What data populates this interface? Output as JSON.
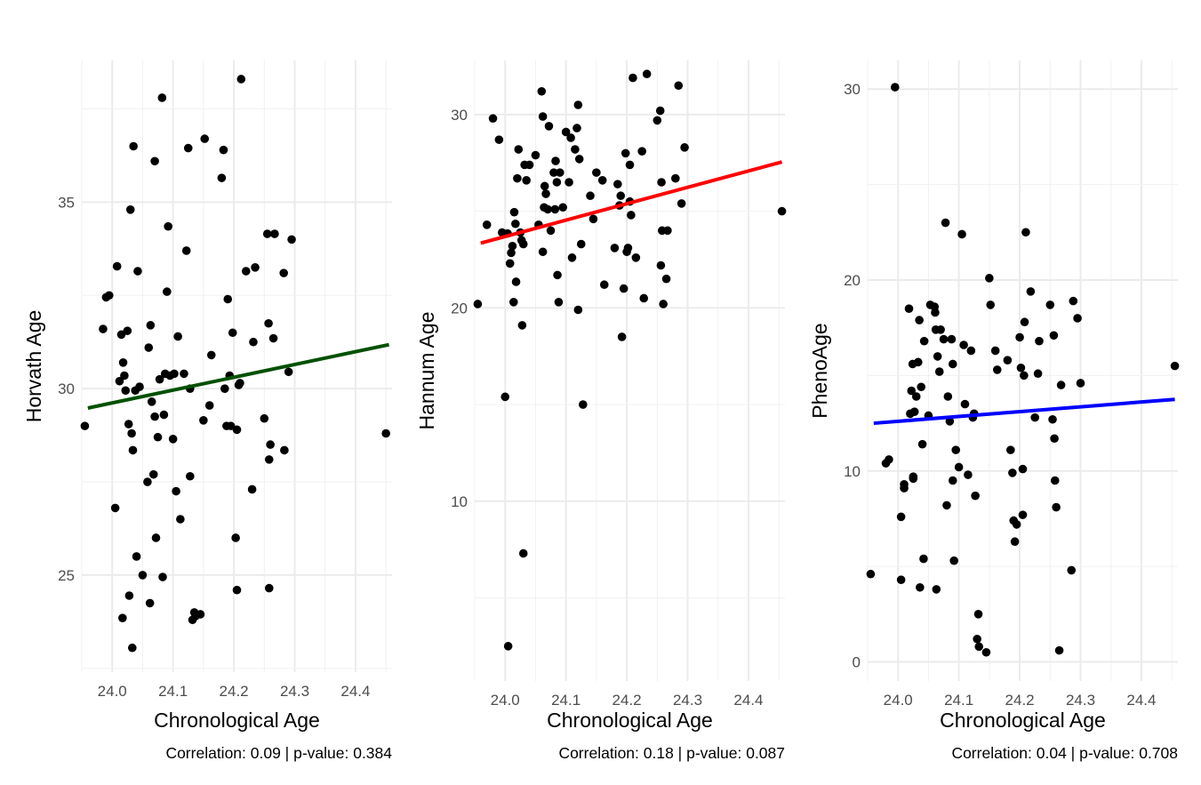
{
  "chart_data": [
    {
      "type": "scatter",
      "xlabel": "Chronological Age",
      "ylabel": "Horvath Age",
      "caption": "Correlation: 0.09 | p-value: 0.384",
      "xlim": [
        23.95,
        24.46
      ],
      "ylim": [
        22.4,
        38.8
      ],
      "x_ticks": [
        "24.0",
        "24.1",
        "24.2",
        "24.3",
        "24.4"
      ],
      "y_ticks": [
        "25",
        "30",
        "35"
      ],
      "y_tick_values": [
        25,
        30,
        35
      ],
      "trend_line": {
        "x": [
          23.96,
          24.455
        ],
        "y": [
          29.48,
          31.18
        ],
        "color": "#005000"
      },
      "points": [
        [
          23.955,
          29.0
        ],
        [
          23.985,
          31.6
        ],
        [
          23.99,
          32.45
        ],
        [
          23.995,
          32.5
        ],
        [
          24.005,
          26.8
        ],
        [
          24.008,
          33.28
        ],
        [
          24.012,
          30.2
        ],
        [
          24.015,
          31.45
        ],
        [
          24.017,
          23.85
        ],
        [
          24.018,
          30.7
        ],
        [
          24.02,
          30.35
        ],
        [
          24.022,
          29.95
        ],
        [
          24.025,
          31.55
        ],
        [
          24.027,
          29.05
        ],
        [
          24.028,
          24.45
        ],
        [
          24.03,
          34.8
        ],
        [
          24.032,
          28.8
        ],
        [
          24.033,
          23.05
        ],
        [
          24.034,
          28.35
        ],
        [
          24.035,
          36.5
        ],
        [
          24.038,
          29.95
        ],
        [
          24.04,
          25.5
        ],
        [
          24.042,
          33.15
        ],
        [
          24.045,
          30.05
        ],
        [
          24.05,
          25.0
        ],
        [
          24.058,
          27.5
        ],
        [
          24.06,
          31.1
        ],
        [
          24.062,
          24.25
        ],
        [
          24.063,
          31.7
        ],
        [
          24.065,
          29.65
        ],
        [
          24.068,
          27.7
        ],
        [
          24.07,
          29.25
        ],
        [
          24.07,
          36.1
        ],
        [
          24.072,
          26.0
        ],
        [
          24.075,
          28.7
        ],
        [
          24.078,
          30.25
        ],
        [
          24.082,
          37.8
        ],
        [
          24.083,
          24.95
        ],
        [
          24.085,
          29.3
        ],
        [
          24.087,
          30.4
        ],
        [
          24.09,
          32.6
        ],
        [
          24.092,
          34.35
        ],
        [
          24.095,
          30.35
        ],
        [
          24.1,
          28.65
        ],
        [
          24.102,
          30.4
        ],
        [
          24.105,
          27.25
        ],
        [
          24.108,
          31.4
        ],
        [
          24.112,
          26.5
        ],
        [
          24.118,
          30.4
        ],
        [
          24.122,
          33.7
        ],
        [
          24.125,
          36.45
        ],
        [
          24.128,
          30.0
        ],
        [
          24.128,
          27.65
        ],
        [
          24.132,
          23.8
        ],
        [
          24.135,
          24.0
        ],
        [
          24.137,
          23.9
        ],
        [
          24.145,
          23.95
        ],
        [
          24.15,
          29.15
        ],
        [
          24.152,
          36.7
        ],
        [
          24.16,
          29.55
        ],
        [
          24.163,
          30.9
        ],
        [
          24.18,
          35.65
        ],
        [
          24.183,
          36.4
        ],
        [
          24.185,
          30.0
        ],
        [
          24.188,
          29.0
        ],
        [
          24.19,
          32.4
        ],
        [
          24.193,
          30.35
        ],
        [
          24.195,
          29.0
        ],
        [
          24.198,
          31.5
        ],
        [
          24.203,
          26.0
        ],
        [
          24.205,
          24.6
        ],
        [
          24.205,
          28.9
        ],
        [
          24.208,
          30.1
        ],
        [
          24.21,
          30.15
        ],
        [
          24.212,
          38.3
        ],
        [
          24.22,
          33.15
        ],
        [
          24.23,
          27.3
        ],
        [
          24.232,
          31.25
        ],
        [
          24.235,
          33.25
        ],
        [
          24.25,
          29.2
        ],
        [
          24.255,
          34.15
        ],
        [
          24.257,
          31.75
        ],
        [
          24.258,
          28.1
        ],
        [
          24.258,
          24.65
        ],
        [
          24.26,
          28.5
        ],
        [
          24.265,
          31.35
        ],
        [
          24.267,
          34.15
        ],
        [
          24.282,
          33.1
        ],
        [
          24.283,
          28.35
        ],
        [
          24.29,
          30.45
        ],
        [
          24.295,
          34.0
        ],
        [
          24.45,
          28.8
        ]
      ]
    },
    {
      "type": "scatter",
      "xlabel": "Chronological Age",
      "ylabel": "Hannum Age",
      "caption": "Correlation: 0.18 | p-value: 0.087",
      "xlim": [
        23.95,
        24.46
      ],
      "ylim": [
        0.7,
        32.8
      ],
      "x_ticks": [
        "24.0",
        "24.1",
        "24.2",
        "24.3",
        "24.4"
      ],
      "y_ticks": [
        "10",
        "20",
        "30"
      ],
      "y_tick_values": [
        10,
        20,
        30
      ],
      "trend_line": {
        "x": [
          23.96,
          24.455
        ],
        "y": [
          23.35,
          27.55
        ],
        "color": "#ff0000"
      },
      "points": [
        [
          23.955,
          20.2
        ],
        [
          23.97,
          24.3
        ],
        [
          23.98,
          29.8
        ],
        [
          23.99,
          28.7
        ],
        [
          23.995,
          23.9
        ],
        [
          24.0,
          15.4
        ],
        [
          24.004,
          23.85
        ],
        [
          24.005,
          2.5
        ],
        [
          24.008,
          22.3
        ],
        [
          24.01,
          22.85
        ],
        [
          24.012,
          23.2
        ],
        [
          24.014,
          20.3
        ],
        [
          24.015,
          24.95
        ],
        [
          24.017,
          24.35
        ],
        [
          24.018,
          21.35
        ],
        [
          24.02,
          26.7
        ],
        [
          24.022,
          28.2
        ],
        [
          24.025,
          23.9
        ],
        [
          24.027,
          23.5
        ],
        [
          24.028,
          19.1
        ],
        [
          24.03,
          7.3
        ],
        [
          24.03,
          23.3
        ],
        [
          24.032,
          27.4
        ],
        [
          24.035,
          26.6
        ],
        [
          24.04,
          27.4
        ],
        [
          24.05,
          27.9
        ],
        [
          24.055,
          24.3
        ],
        [
          24.06,
          31.2
        ],
        [
          24.062,
          22.9
        ],
        [
          24.062,
          29.9
        ],
        [
          24.064,
          25.2
        ],
        [
          24.065,
          26.3
        ],
        [
          24.067,
          25.9
        ],
        [
          24.07,
          25.1
        ],
        [
          24.072,
          29.4
        ],
        [
          24.075,
          24.0
        ],
        [
          24.08,
          27.0
        ],
        [
          24.082,
          25.1
        ],
        [
          24.083,
          27.6
        ],
        [
          24.085,
          26.5
        ],
        [
          24.086,
          21.7
        ],
        [
          24.088,
          20.3
        ],
        [
          24.09,
          27.0
        ],
        [
          24.095,
          25.2
        ],
        [
          24.1,
          29.1
        ],
        [
          24.105,
          26.5
        ],
        [
          24.108,
          28.8
        ],
        [
          24.11,
          22.6
        ],
        [
          24.115,
          28.2
        ],
        [
          24.118,
          29.3
        ],
        [
          24.12,
          19.9
        ],
        [
          24.12,
          30.5
        ],
        [
          24.122,
          27.7
        ],
        [
          24.125,
          23.3
        ],
        [
          24.128,
          15.0
        ],
        [
          24.14,
          25.8
        ],
        [
          24.145,
          24.6
        ],
        [
          24.15,
          27.0
        ],
        [
          24.16,
          26.6
        ],
        [
          24.163,
          21.2
        ],
        [
          24.18,
          23.1
        ],
        [
          24.185,
          26.4
        ],
        [
          24.188,
          25.3
        ],
        [
          24.19,
          25.8
        ],
        [
          24.192,
          18.5
        ],
        [
          24.195,
          21.0
        ],
        [
          24.198,
          28.0
        ],
        [
          24.2,
          22.9
        ],
        [
          24.202,
          23.1
        ],
        [
          24.205,
          27.4
        ],
        [
          24.205,
          25.5
        ],
        [
          24.207,
          24.8
        ],
        [
          24.21,
          31.9
        ],
        [
          24.215,
          22.6
        ],
        [
          24.225,
          28.1
        ],
        [
          24.228,
          20.5
        ],
        [
          24.233,
          32.1
        ],
        [
          24.25,
          29.7
        ],
        [
          24.255,
          30.2
        ],
        [
          24.256,
          22.2
        ],
        [
          24.257,
          26.5
        ],
        [
          24.258,
          24.0
        ],
        [
          24.26,
          20.2
        ],
        [
          24.265,
          21.5
        ],
        [
          24.267,
          24.0
        ],
        [
          24.28,
          26.7
        ],
        [
          24.285,
          31.5
        ],
        [
          24.29,
          25.4
        ],
        [
          24.295,
          28.3
        ],
        [
          24.455,
          25.0
        ]
      ]
    },
    {
      "type": "scatter",
      "xlabel": "Chronological Age",
      "ylabel": "PhenoAge",
      "caption": "Correlation: 0.04 | p-value: 0.708",
      "xlim": [
        23.95,
        24.46
      ],
      "ylim": [
        -1.0,
        31.5
      ],
      "x_ticks": [
        "24.0",
        "24.1",
        "24.2",
        "24.3",
        "24.4"
      ],
      "y_ticks": [
        "0",
        "10",
        "20",
        "30"
      ],
      "y_tick_values": [
        0,
        10,
        20,
        30
      ],
      "trend_line": {
        "x": [
          23.96,
          24.455
        ],
        "y": [
          12.5,
          13.75
        ],
        "color": "#0000ff"
      },
      "points": [
        [
          23.955,
          4.6
        ],
        [
          23.98,
          10.4
        ],
        [
          23.985,
          10.6
        ],
        [
          23.995,
          30.1
        ],
        [
          24.005,
          4.3
        ],
        [
          24.005,
          7.6
        ],
        [
          24.01,
          9.1
        ],
        [
          24.01,
          9.3
        ],
        [
          24.018,
          18.5
        ],
        [
          24.02,
          13.0
        ],
        [
          24.022,
          14.2
        ],
        [
          24.024,
          15.6
        ],
        [
          24.025,
          9.7
        ],
        [
          24.025,
          9.6
        ],
        [
          24.027,
          13.1
        ],
        [
          24.03,
          13.9
        ],
        [
          24.033,
          15.7
        ],
        [
          24.035,
          17.9
        ],
        [
          24.036,
          3.9
        ],
        [
          24.038,
          14.4
        ],
        [
          24.04,
          11.4
        ],
        [
          24.042,
          5.4
        ],
        [
          24.043,
          16.8
        ],
        [
          24.05,
          12.9
        ],
        [
          24.053,
          18.7
        ],
        [
          24.06,
          18.6
        ],
        [
          24.061,
          18.3
        ],
        [
          24.062,
          17.4
        ],
        [
          24.063,
          3.8
        ],
        [
          24.065,
          16.0
        ],
        [
          24.068,
          15.2
        ],
        [
          24.07,
          17.4
        ],
        [
          24.075,
          16.9
        ],
        [
          24.078,
          23.0
        ],
        [
          24.08,
          8.2
        ],
        [
          24.082,
          13.9
        ],
        [
          24.085,
          12.6
        ],
        [
          24.088,
          16.9
        ],
        [
          24.09,
          15.6
        ],
        [
          24.09,
          9.5
        ],
        [
          24.092,
          5.3
        ],
        [
          24.095,
          11.1
        ],
        [
          24.1,
          10.2
        ],
        [
          24.105,
          22.4
        ],
        [
          24.108,
          16.6
        ],
        [
          24.11,
          13.5
        ],
        [
          24.115,
          9.8
        ],
        [
          24.12,
          16.3
        ],
        [
          24.123,
          12.8
        ],
        [
          24.125,
          13.0
        ],
        [
          24.127,
          8.7
        ],
        [
          24.13,
          1.2
        ],
        [
          24.132,
          2.5
        ],
        [
          24.133,
          0.8
        ],
        [
          24.145,
          0.5
        ],
        [
          24.15,
          20.1
        ],
        [
          24.152,
          18.7
        ],
        [
          24.16,
          16.3
        ],
        [
          24.163,
          15.3
        ],
        [
          24.18,
          15.8
        ],
        [
          24.185,
          11.1
        ],
        [
          24.188,
          9.9
        ],
        [
          24.19,
          7.4
        ],
        [
          24.192,
          6.3
        ],
        [
          24.195,
          7.2
        ],
        [
          24.2,
          17.0
        ],
        [
          24.202,
          15.4
        ],
        [
          24.205,
          10.1
        ],
        [
          24.205,
          7.7
        ],
        [
          24.207,
          15.0
        ],
        [
          24.208,
          17.8
        ],
        [
          24.21,
          22.5
        ],
        [
          24.218,
          19.4
        ],
        [
          24.225,
          12.8
        ],
        [
          24.23,
          15.1
        ],
        [
          24.232,
          16.8
        ],
        [
          24.25,
          18.7
        ],
        [
          24.254,
          12.7
        ],
        [
          24.256,
          17.1
        ],
        [
          24.257,
          11.7
        ],
        [
          24.258,
          9.5
        ],
        [
          24.26,
          8.1
        ],
        [
          24.265,
          0.6
        ],
        [
          24.268,
          14.5
        ],
        [
          24.285,
          4.8
        ],
        [
          24.288,
          18.9
        ],
        [
          24.295,
          18.0
        ],
        [
          24.3,
          14.6
        ],
        [
          24.455,
          15.5
        ]
      ]
    }
  ]
}
